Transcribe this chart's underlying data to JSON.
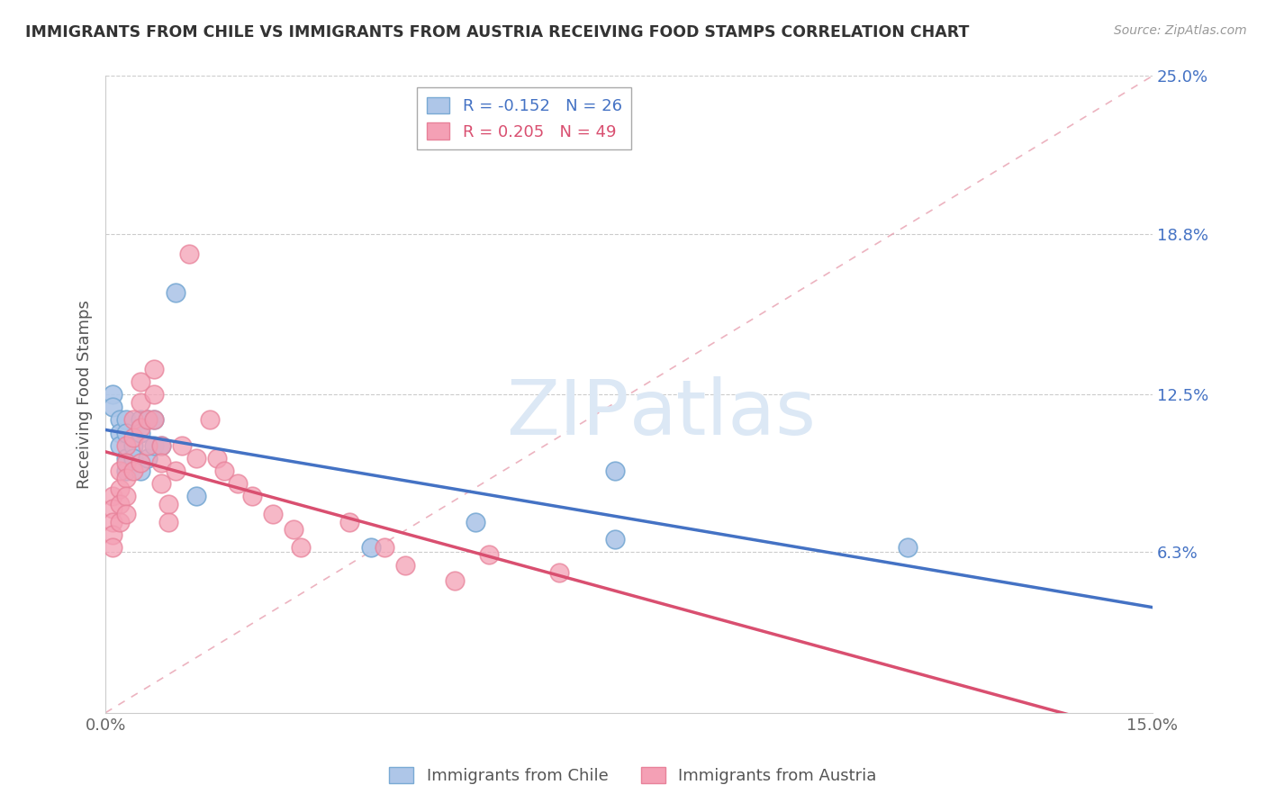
{
  "title": "IMMIGRANTS FROM CHILE VS IMMIGRANTS FROM AUSTRIA RECEIVING FOOD STAMPS CORRELATION CHART",
  "source": "Source: ZipAtlas.com",
  "ylabel": "Receiving Food Stamps",
  "xlim": [
    0.0,
    0.15
  ],
  "ylim": [
    0.0,
    0.25
  ],
  "yticks": [
    0.063,
    0.125,
    0.188,
    0.25
  ],
  "ytick_labels": [
    "6.3%",
    "12.5%",
    "18.8%",
    "25.0%"
  ],
  "xticks": [
    0.0,
    0.15
  ],
  "xtick_labels": [
    "0.0%",
    "15.0%"
  ],
  "legend_chile_label": "Immigrants from Chile",
  "legend_austria_label": "Immigrants from Austria",
  "chile_R": -0.152,
  "chile_N": 26,
  "austria_R": 0.205,
  "austria_N": 49,
  "chile_color": "#aec6e8",
  "austria_color": "#f4a0b5",
  "chile_edge_color": "#7aaad4",
  "austria_edge_color": "#e8829a",
  "chile_line_color": "#4472c4",
  "austria_line_color": "#d94f70",
  "diag_line_color": "#f4a0b5",
  "watermark_color": "#dce8f5",
  "background_color": "#ffffff",
  "chile_x": [
    0.001,
    0.001,
    0.002,
    0.002,
    0.002,
    0.003,
    0.003,
    0.003,
    0.003,
    0.004,
    0.004,
    0.005,
    0.005,
    0.005,
    0.006,
    0.006,
    0.007,
    0.007,
    0.008,
    0.01,
    0.013,
    0.038,
    0.053,
    0.073,
    0.073,
    0.115
  ],
  "chile_y": [
    0.125,
    0.12,
    0.115,
    0.11,
    0.105,
    0.115,
    0.11,
    0.1,
    0.095,
    0.105,
    0.1,
    0.115,
    0.11,
    0.095,
    0.115,
    0.1,
    0.115,
    0.105,
    0.105,
    0.165,
    0.085,
    0.065,
    0.075,
    0.068,
    0.095,
    0.065
  ],
  "austria_x": [
    0.001,
    0.001,
    0.001,
    0.001,
    0.001,
    0.002,
    0.002,
    0.002,
    0.002,
    0.003,
    0.003,
    0.003,
    0.003,
    0.003,
    0.004,
    0.004,
    0.004,
    0.005,
    0.005,
    0.005,
    0.005,
    0.006,
    0.006,
    0.007,
    0.007,
    0.007,
    0.008,
    0.008,
    0.008,
    0.009,
    0.009,
    0.01,
    0.011,
    0.012,
    0.013,
    0.015,
    0.016,
    0.017,
    0.019,
    0.021,
    0.024,
    0.027,
    0.028,
    0.035,
    0.04,
    0.043,
    0.05,
    0.055,
    0.065
  ],
  "austria_y": [
    0.085,
    0.08,
    0.075,
    0.07,
    0.065,
    0.095,
    0.088,
    0.082,
    0.075,
    0.105,
    0.098,
    0.092,
    0.085,
    0.078,
    0.115,
    0.108,
    0.095,
    0.13,
    0.122,
    0.112,
    0.098,
    0.115,
    0.105,
    0.135,
    0.125,
    0.115,
    0.105,
    0.098,
    0.09,
    0.082,
    0.075,
    0.095,
    0.105,
    0.18,
    0.1,
    0.115,
    0.1,
    0.095,
    0.09,
    0.085,
    0.078,
    0.072,
    0.065,
    0.075,
    0.065,
    0.058,
    0.052,
    0.062,
    0.055
  ]
}
